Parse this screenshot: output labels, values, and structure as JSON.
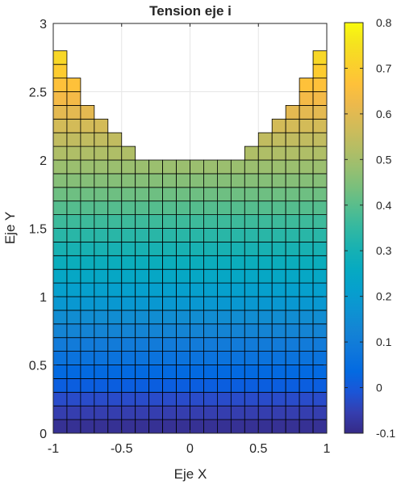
{
  "chart_data": {
    "type": "heatmap",
    "title": "Tension eje i",
    "xlabel": "Eje X",
    "ylabel": "Eje Y",
    "xlim": [
      -1,
      1
    ],
    "ylim": [
      0,
      3
    ],
    "xticks": [
      -1,
      -0.5,
      0,
      0.5,
      1
    ],
    "xtick_labels": [
      "-1",
      "-0.5",
      "0",
      "0.5",
      "1"
    ],
    "yticks": [
      0,
      0.5,
      1,
      1.5,
      2,
      2.5,
      3
    ],
    "ytick_labels": [
      "0",
      "0.5",
      "1",
      "1.5",
      "2",
      "2.5",
      "3"
    ],
    "grid": true,
    "colormap": "parula",
    "colorbar": {
      "limits": [
        -0.1,
        0.8
      ],
      "ticks": [
        -0.1,
        0,
        0.1,
        0.2,
        0.3,
        0.4,
        0.5,
        0.6,
        0.7,
        0.8
      ],
      "tick_labels": [
        "-0.1",
        "0",
        "0.1",
        "0.2",
        "0.3",
        "0.4",
        "0.5",
        "0.6",
        "0.7",
        "0.8"
      ],
      "placement": "right"
    },
    "mesh": {
      "cell_width": 0.1,
      "cell_height": 0.1,
      "column_x_start": [
        -1.0,
        -0.9,
        -0.8,
        -0.7,
        -0.6,
        -0.5,
        -0.4,
        -0.3,
        -0.2,
        -0.1,
        0.0,
        0.1,
        0.2,
        0.3,
        0.4,
        0.5,
        0.6,
        0.7,
        0.8,
        0.9
      ],
      "column_top_y": [
        2.8,
        2.6,
        2.4,
        2.3,
        2.2,
        2.1,
        2.0,
        2.0,
        2.0,
        2.0,
        2.0,
        2.0,
        2.0,
        2.0,
        2.1,
        2.2,
        2.3,
        2.4,
        2.6,
        2.8
      ],
      "value_at_y0": -0.1,
      "value_per_unit_y": 0.3
    }
  }
}
